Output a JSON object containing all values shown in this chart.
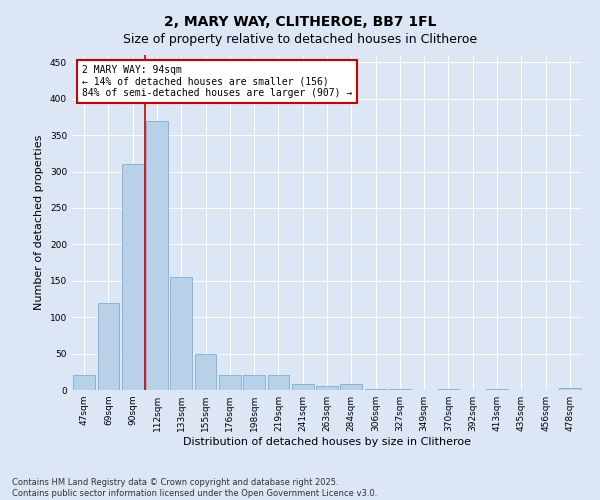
{
  "title": "2, MARY WAY, CLITHEROE, BB7 1FL",
  "subtitle": "Size of property relative to detached houses in Clitheroe",
  "xlabel": "Distribution of detached houses by size in Clitheroe",
  "ylabel": "Number of detached properties",
  "categories": [
    "47sqm",
    "69sqm",
    "90sqm",
    "112sqm",
    "133sqm",
    "155sqm",
    "176sqm",
    "198sqm",
    "219sqm",
    "241sqm",
    "263sqm",
    "284sqm",
    "306sqm",
    "327sqm",
    "349sqm",
    "370sqm",
    "392sqm",
    "413sqm",
    "435sqm",
    "456sqm",
    "478sqm"
  ],
  "values": [
    20,
    120,
    310,
    370,
    155,
    50,
    20,
    20,
    20,
    8,
    5,
    8,
    2,
    2,
    0,
    2,
    0,
    2,
    0,
    0,
    3
  ],
  "bar_color": "#b8d0e8",
  "bar_edgecolor": "#7aafd4",
  "vline_x_index": 2.5,
  "vline_color": "#cc0000",
  "annotation_text": "2 MARY WAY: 94sqm\n← 14% of detached houses are smaller (156)\n84% of semi-detached houses are larger (907) →",
  "annotation_box_color": "#cc0000",
  "background_color": "#dce6f5",
  "plot_bg_color": "#dce6f5",
  "ylim": [
    0,
    460
  ],
  "yticks": [
    0,
    50,
    100,
    150,
    200,
    250,
    300,
    350,
    400,
    450
  ],
  "footer_line1": "Contains HM Land Registry data © Crown copyright and database right 2025.",
  "footer_line2": "Contains public sector information licensed under the Open Government Licence v3.0.",
  "title_fontsize": 10,
  "subtitle_fontsize": 9,
  "tick_fontsize": 6.5,
  "label_fontsize": 8,
  "footer_fontsize": 6,
  "annotation_fontsize": 7
}
